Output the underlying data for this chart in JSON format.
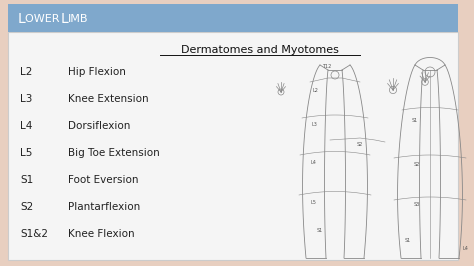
{
  "title": "Lower Limb",
  "subtitle": "Dermatomes and Myotomes",
  "header_bg": "#7fa8cc",
  "header_text_color": "#ffffff",
  "slide_bg": "#e8cfc0",
  "white_bg": "#f5f5f5",
  "rows": [
    {
      "level": "L2",
      "action": "Hip Flexion"
    },
    {
      "level": "L3",
      "action": "Knee Extension"
    },
    {
      "level": "L4",
      "action": "Dorsiflexion"
    },
    {
      "level": "L5",
      "action": "Big Toe Extension"
    },
    {
      "level": "S1",
      "action": "Foot Eversion"
    },
    {
      "level": "S2",
      "action": "Plantarflexion"
    },
    {
      "level": "S1&2",
      "action": "Knee Flexion"
    }
  ],
  "level_fontsize": 7.5,
  "action_fontsize": 7.5,
  "subtitle_fontsize": 8,
  "title_fontsize": 10,
  "diagram_line_color": "#888888",
  "diagram_lw": 0.6
}
